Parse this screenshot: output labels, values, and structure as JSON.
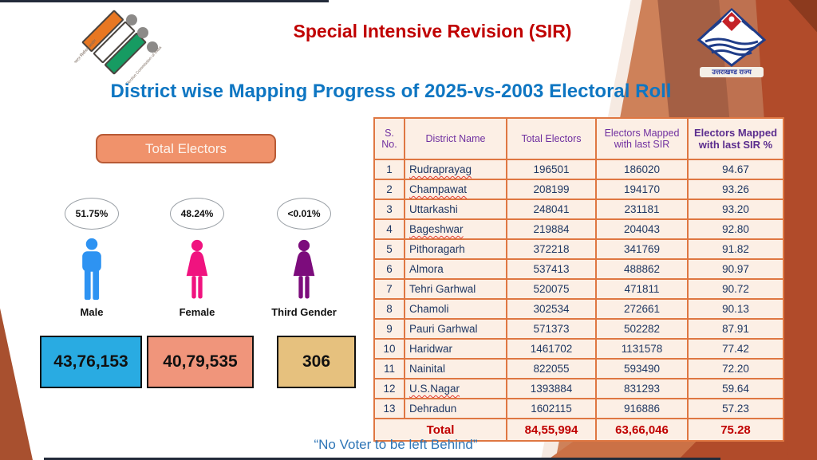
{
  "page": {
    "title": "Special Intensive Revision (SIR)",
    "subtitle": "District wise Mapping Progress of 2025-vs-2003 Electoral Roll",
    "footer_quote": "“No Voter to be left Behind”"
  },
  "logos": {
    "eci": {
      "hindi_text": "भारत निर्वाचन आयोग",
      "english_text": "Election Commission of India"
    },
    "uttarakhand": {
      "caption": "उत्तराखण्ड राज्य"
    }
  },
  "summary": {
    "badge_label": "Total Electors",
    "genders": [
      {
        "label": "Male",
        "percent": "51.75%",
        "count": "43,76,153",
        "figure_color": "#2E93F2",
        "box_color": "#29ABE2"
      },
      {
        "label": "Female",
        "percent": "48.24%",
        "count": "40,79,535",
        "figure_color": "#F0137F",
        "box_color": "#F0957B"
      },
      {
        "label": "Third Gender",
        "percent": "<0.01%",
        "count": "306",
        "figure_color": "#7C0C7C",
        "box_color": "#E6C17E"
      }
    ]
  },
  "table": {
    "headers": [
      "S. No.",
      "District Name",
      "Total Electors",
      "Electors Mapped with last SIR",
      "Electors Mapped with last SIR %"
    ],
    "rows": [
      {
        "sno": "1",
        "district": "Rudraprayag",
        "total": "196501",
        "mapped": "186020",
        "pct": "94.67",
        "misspelled": true
      },
      {
        "sno": "2",
        "district": "Champawat",
        "total": "208199",
        "mapped": "194170",
        "pct": "93.26",
        "misspelled": true
      },
      {
        "sno": "3",
        "district": "Uttarkashi",
        "total": "248041",
        "mapped": "231181",
        "pct": "93.20",
        "misspelled": false
      },
      {
        "sno": "4",
        "district": "Bageshwar",
        "total": "219884",
        "mapped": "204043",
        "pct": "92.80",
        "misspelled": true
      },
      {
        "sno": "5",
        "district": "Pithoragarh",
        "total": "372218",
        "mapped": "341769",
        "pct": "91.82",
        "misspelled": false
      },
      {
        "sno": "6",
        "district": "Almora",
        "total": "537413",
        "mapped": "488862",
        "pct": "90.97",
        "misspelled": false
      },
      {
        "sno": "7",
        "district": "Tehri Garhwal",
        "total": "520075",
        "mapped": "471811",
        "pct": "90.72",
        "misspelled": false
      },
      {
        "sno": "8",
        "district": "Chamoli",
        "total": "302534",
        "mapped": "272661",
        "pct": "90.13",
        "misspelled": false
      },
      {
        "sno": "9",
        "district": "Pauri Garhwal",
        "total": "571373",
        "mapped": "502282",
        "pct": "87.91",
        "misspelled": false
      },
      {
        "sno": "10",
        "district": "Haridwar",
        "total": "1461702",
        "mapped": "1131578",
        "pct": "77.42",
        "misspelled": false
      },
      {
        "sno": "11",
        "district": "Nainital",
        "total": "822055",
        "mapped": "593490",
        "pct": "72.20",
        "misspelled": false
      },
      {
        "sno": "12",
        "district": "U.S.Nagar",
        "total": "1393884",
        "mapped": "831293",
        "pct": "59.64",
        "misspelled": true
      },
      {
        "sno": "13",
        "district": "Dehradun",
        "total": "1602115",
        "mapped": "916886",
        "pct": "57.23",
        "misspelled": false
      }
    ],
    "total_row": {
      "label": "Total",
      "total": "84,55,994",
      "mapped": "63,66,046",
      "pct": "75.28"
    }
  }
}
